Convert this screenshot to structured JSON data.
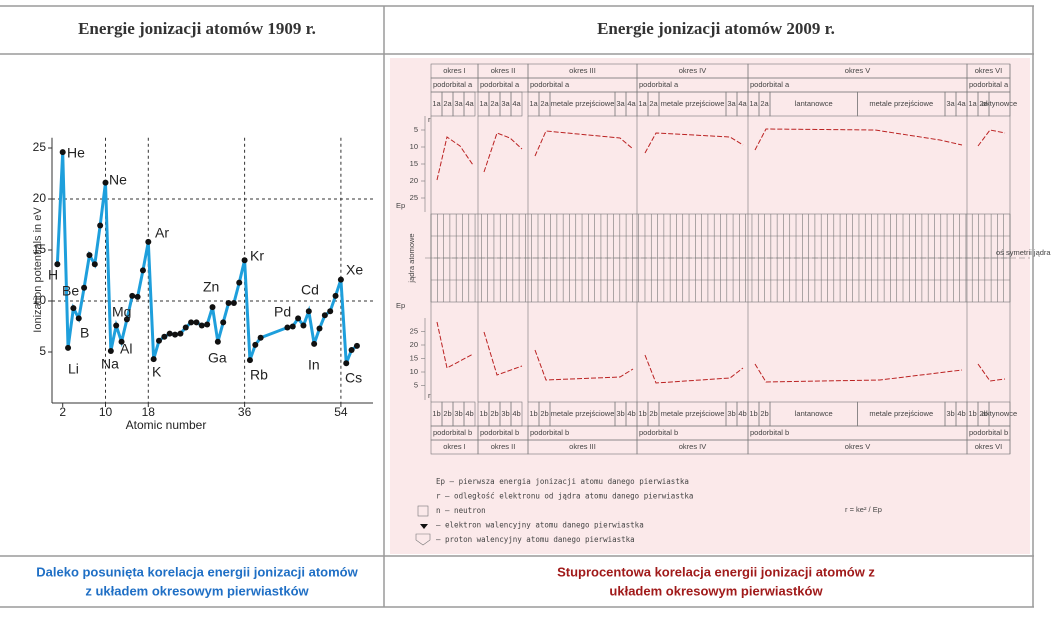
{
  "table": {
    "headers": [
      "Energie jonizacji atomów 1909 r.",
      "Energie jonizacji atomów 2009 r."
    ],
    "captions": [
      [
        "Daleko posunięta korelacja energii jonizacji atomów",
        "z układem okresowym pierwiastków"
      ],
      [
        "Stuprocentowa  korelacja energii jonizacji atomów z",
        "układem okresowym pierwiastków"
      ]
    ]
  },
  "chart_data": {
    "type": "line",
    "x_label": "Atomic number",
    "y_label": "Ionization potentials in eV",
    "x": [
      1,
      2,
      3,
      4,
      5,
      6,
      7,
      8,
      9,
      10,
      11,
      12,
      13,
      14,
      15,
      16,
      17,
      18,
      19,
      20,
      21,
      22,
      23,
      24,
      25,
      26,
      27,
      28,
      29,
      30,
      31,
      32,
      33,
      34,
      35,
      36,
      37,
      38,
      39,
      44,
      45,
      46,
      47,
      48,
      49,
      50,
      51,
      52,
      53,
      54,
      55,
      56,
      57
    ],
    "series": [
      {
        "name": "Ionization potential",
        "color": "#1e9fdc",
        "values": [
          13.6,
          24.6,
          5.4,
          9.3,
          8.3,
          11.3,
          14.5,
          13.6,
          17.4,
          21.6,
          5.1,
          7.6,
          6.0,
          8.2,
          10.5,
          10.4,
          13.0,
          15.8,
          4.3,
          6.1,
          6.5,
          6.8,
          6.7,
          6.8,
          7.4,
          7.9,
          7.9,
          7.6,
          7.7,
          9.4,
          6.0,
          7.9,
          9.8,
          9.8,
          11.8,
          14.0,
          4.2,
          5.7,
          6.4,
          7.4,
          7.5,
          8.3,
          7.6,
          9.0,
          5.8,
          7.3,
          8.6,
          9.0,
          10.5,
          12.1,
          3.9,
          5.2,
          5.6
        ]
      }
    ],
    "xlim": [
      0,
      60
    ],
    "ylim": [
      0,
      26
    ],
    "xticks": [
      2,
      10,
      18,
      36,
      54
    ],
    "yticks": [
      5,
      10,
      15,
      20,
      25
    ],
    "ref_lines_y": [
      10,
      20
    ],
    "ref_lines_x": [
      10,
      18,
      36,
      54
    ],
    "annotations": [
      "He",
      "Ne",
      "Ar",
      "Kr",
      "Xe",
      "H",
      "Be",
      "Cd",
      "Zn",
      "Mg",
      "Pd",
      "B",
      "Al",
      "Na",
      "Ga",
      "In",
      "Li",
      "K",
      "Rb",
      "Cs"
    ]
  },
  "diagram": {
    "periods": [
      "okres I",
      "okres II",
      "okres III",
      "okres IV",
      "okres V",
      "okres VI"
    ],
    "top_orbital": [
      "podorbital a",
      "podorbital a",
      "podorbital a",
      "podorbital a",
      "podorbital a",
      "podorbital a"
    ],
    "bottom_orbital": [
      "podorbital b",
      "podorbital b",
      "podorbital b",
      "podorbital b",
      "podorbital b",
      "podorbital b"
    ],
    "top_groups": [
      [
        "1a",
        "2a",
        "3a",
        "4a"
      ],
      [
        "1a",
        "2a",
        "3a",
        "4a"
      ],
      [
        "1a",
        "2a",
        "metale przejściowe",
        "3a",
        "4a"
      ],
      [
        "1a",
        "2a",
        "metale przejściowe",
        "3a",
        "4a"
      ],
      [
        "1a",
        "2a",
        "lantanowce",
        "metale przejściowe",
        "3a",
        "4a"
      ],
      [
        "1a",
        "2a",
        "aktynowce"
      ]
    ],
    "bottom_groups": [
      [
        "1b",
        "2b",
        "3b",
        "4b"
      ],
      [
        "1b",
        "2b",
        "3b",
        "4b"
      ],
      [
        "1b",
        "2b",
        "metale przejściowe",
        "3b",
        "4b"
      ],
      [
        "1b",
        "2b",
        "metale przejściowe",
        "3b",
        "4b"
      ],
      [
        "1b",
        "2b",
        "lantanowce",
        "metale przejściowe",
        "3b",
        "4b"
      ],
      [
        "1b",
        "2b",
        "aktynowce"
      ]
    ],
    "scale": [
      5,
      10,
      15,
      20,
      25
    ],
    "r_label": "r",
    "ep_label": "Ep",
    "nucleus_label": "jądra atomowe",
    "axis_label": "oś symetrii jądra",
    "legend": [
      "Ep – pierwsza energia jonizacji atomu danego pierwiastka",
      "r – odległość elektronu od jądra atomu danego pierwiastka",
      "n – neutron",
      "– elektron walencyjny atomu danego pierwiastka",
      "– proton walencyjny atomu danego pierwiastka"
    ],
    "formula": "r = ke² / Ep"
  }
}
